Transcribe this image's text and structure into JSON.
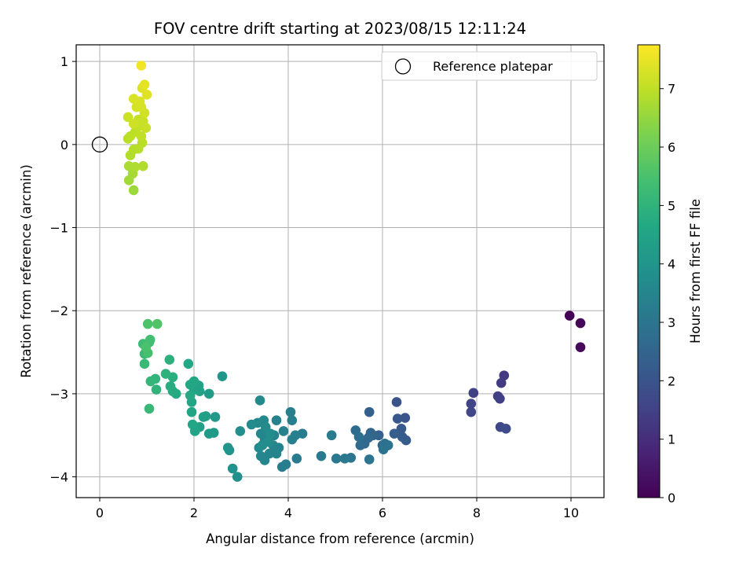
{
  "chart_data": {
    "type": "scatter",
    "title": "FOV centre drift starting at 2023/08/15 12:11:24",
    "xlabel": "Angular distance from reference (arcmin)",
    "ylabel": "Rotation from reference (arcmin)",
    "xlim": [
      -0.5,
      10.7
    ],
    "ylim": [
      -4.25,
      1.2
    ],
    "xticks": [
      0,
      2,
      4,
      6,
      8,
      10
    ],
    "yticks": [
      1,
      0,
      -1,
      -2,
      -3,
      -4
    ],
    "grid": true,
    "legend": {
      "placement": "top-right",
      "entries": [
        "Reference platepar"
      ]
    },
    "reference_point": {
      "name": "Reference platepar",
      "x": 0,
      "y": 0
    },
    "colorbar": {
      "label": "Hours from first FF file",
      "ticks": [
        0,
        1,
        2,
        3,
        4,
        5,
        6,
        7
      ],
      "range": [
        0,
        7.75
      ],
      "colormap": "viridis"
    },
    "series": [
      {
        "points": [
          [
            9.97,
            -2.06,
            0.05
          ],
          [
            10.2,
            -2.15,
            0.1
          ],
          [
            10.2,
            -2.44,
            0.15
          ],
          [
            8.58,
            -2.78,
            1.3
          ],
          [
            8.52,
            -2.87,
            1.35
          ],
          [
            7.93,
            -2.99,
            1.5
          ],
          [
            7.88,
            -3.12,
            1.55
          ],
          [
            7.88,
            -3.22,
            1.6
          ],
          [
            8.45,
            -3.03,
            1.4
          ],
          [
            8.49,
            -3.06,
            1.45
          ],
          [
            8.5,
            -3.4,
            1.7
          ],
          [
            8.62,
            -3.42,
            1.75
          ],
          [
            6.3,
            -3.1,
            2.0
          ],
          [
            6.48,
            -3.29,
            2.05
          ],
          [
            6.32,
            -3.3,
            2.1
          ],
          [
            6.4,
            -3.42,
            2.15
          ],
          [
            6.42,
            -3.52,
            2.2
          ],
          [
            6.5,
            -3.56,
            2.25
          ],
          [
            6.25,
            -3.48,
            2.3
          ],
          [
            5.72,
            -3.22,
            2.35
          ],
          [
            5.92,
            -3.5,
            2.4
          ],
          [
            6.0,
            -3.62,
            2.45
          ],
          [
            5.8,
            -3.5,
            2.5
          ],
          [
            5.75,
            -3.47,
            2.55
          ],
          [
            5.7,
            -3.53,
            2.6
          ],
          [
            5.62,
            -3.6,
            2.65
          ],
          [
            5.53,
            -3.62,
            2.7
          ],
          [
            5.43,
            -3.44,
            2.75
          ],
          [
            5.5,
            -3.52,
            2.8
          ],
          [
            6.05,
            -3.6,
            2.85
          ],
          [
            6.12,
            -3.62,
            2.9
          ],
          [
            6.02,
            -3.67,
            2.95
          ],
          [
            5.72,
            -3.79,
            3.0
          ],
          [
            5.33,
            -3.77,
            3.05
          ],
          [
            5.02,
            -3.78,
            3.1
          ],
          [
            5.2,
            -3.78,
            3.12
          ],
          [
            4.7,
            -3.75,
            3.15
          ],
          [
            4.92,
            -3.5,
            3.18
          ],
          [
            4.3,
            -3.48,
            3.2
          ],
          [
            4.18,
            -3.78,
            3.22
          ],
          [
            3.95,
            -3.85,
            3.25
          ],
          [
            3.87,
            -3.88,
            3.28
          ],
          [
            4.05,
            -3.22,
            3.3
          ],
          [
            4.08,
            -3.32,
            3.32
          ],
          [
            4.08,
            -3.55,
            3.34
          ],
          [
            4.15,
            -3.5,
            3.36
          ],
          [
            3.9,
            -3.45,
            3.38
          ],
          [
            3.75,
            -3.32,
            3.4
          ],
          [
            3.7,
            -3.5,
            3.42
          ],
          [
            3.8,
            -3.65,
            3.44
          ],
          [
            3.75,
            -3.72,
            3.46
          ],
          [
            3.68,
            -3.62,
            3.48
          ],
          [
            3.6,
            -3.72,
            3.5
          ],
          [
            3.5,
            -3.8,
            3.52
          ],
          [
            3.42,
            -3.75,
            3.54
          ],
          [
            3.5,
            -3.55,
            3.56
          ],
          [
            3.42,
            -3.48,
            3.58
          ],
          [
            3.48,
            -3.32,
            3.6
          ],
          [
            3.35,
            -3.35,
            3.62
          ],
          [
            3.4,
            -3.08,
            3.64
          ],
          [
            3.22,
            -3.37,
            3.66
          ],
          [
            3.38,
            -3.65,
            3.68
          ],
          [
            3.52,
            -3.4,
            3.7
          ],
          [
            3.62,
            -3.48,
            3.72
          ],
          [
            3.58,
            -3.58,
            3.74
          ],
          [
            3.45,
            -3.62,
            3.76
          ],
          [
            2.98,
            -3.45,
            3.8
          ],
          [
            2.92,
            -4.0,
            3.85
          ],
          [
            2.82,
            -3.9,
            3.9
          ],
          [
            2.75,
            -3.68,
            3.95
          ],
          [
            2.72,
            -3.65,
            4.0
          ],
          [
            2.6,
            -2.79,
            4.05
          ],
          [
            2.45,
            -3.28,
            4.1
          ],
          [
            2.42,
            -3.47,
            4.15
          ],
          [
            2.32,
            -3.48,
            4.2
          ],
          [
            2.32,
            -3.0,
            4.25
          ],
          [
            2.25,
            -3.27,
            4.3
          ],
          [
            2.2,
            -3.28,
            4.35
          ],
          [
            2.12,
            -3.4,
            4.38
          ],
          [
            2.08,
            -2.92,
            4.4
          ],
          [
            2.12,
            -2.97,
            4.42
          ],
          [
            2.1,
            -2.9,
            4.45
          ],
          [
            2.0,
            -2.95,
            4.48
          ],
          [
            2.02,
            -3.45,
            4.5
          ],
          [
            1.95,
            -3.1,
            4.52
          ],
          [
            1.95,
            -3.22,
            4.55
          ],
          [
            1.97,
            -3.37,
            4.58
          ],
          [
            2.0,
            -2.85,
            4.6
          ],
          [
            1.92,
            -2.89,
            4.62
          ],
          [
            1.88,
            -2.64,
            4.65
          ],
          [
            1.92,
            -3.02,
            4.68
          ],
          [
            1.62,
            -3.0,
            4.7
          ],
          [
            1.55,
            -2.97,
            4.75
          ],
          [
            1.5,
            -2.91,
            4.8
          ],
          [
            1.55,
            -2.8,
            4.85
          ],
          [
            1.48,
            -2.59,
            4.9
          ],
          [
            1.4,
            -2.76,
            4.95
          ],
          [
            1.2,
            -2.95,
            5.0
          ],
          [
            1.18,
            -2.82,
            5.05
          ],
          [
            1.08,
            -2.85,
            5.1
          ],
          [
            1.05,
            -3.18,
            5.15
          ],
          [
            0.95,
            -2.64,
            5.2
          ],
          [
            0.95,
            -2.52,
            5.25
          ],
          [
            0.92,
            -2.4,
            5.3
          ],
          [
            1.05,
            -2.38,
            5.35
          ],
          [
            1.07,
            -2.35,
            5.4
          ],
          [
            1.02,
            -2.51,
            5.45
          ],
          [
            0.98,
            -2.44,
            5.5
          ],
          [
            1.02,
            -2.16,
            5.55
          ],
          [
            1.22,
            -2.16,
            5.6
          ],
          [
            0.72,
            -0.55,
            6.6
          ],
          [
            0.62,
            -0.43,
            6.65
          ],
          [
            0.7,
            -0.35,
            6.7
          ],
          [
            0.62,
            -0.26,
            6.75
          ],
          [
            0.75,
            -0.27,
            6.8
          ],
          [
            0.92,
            -0.26,
            6.82
          ],
          [
            0.65,
            -0.13,
            6.85
          ],
          [
            0.72,
            -0.06,
            6.88
          ],
          [
            0.82,
            -0.05,
            6.9
          ],
          [
            0.9,
            0.02,
            6.92
          ],
          [
            0.6,
            0.07,
            6.94
          ],
          [
            0.65,
            0.1,
            6.96
          ],
          [
            0.75,
            0.15,
            6.98
          ],
          [
            0.78,
            0.22,
            7.0
          ],
          [
            0.88,
            0.1,
            7.02
          ],
          [
            0.85,
            0.22,
            7.05
          ],
          [
            0.82,
            0.3,
            7.08
          ],
          [
            0.92,
            0.28,
            7.1
          ],
          [
            0.98,
            0.2,
            7.12
          ],
          [
            0.6,
            0.33,
            7.15
          ],
          [
            0.72,
            0.25,
            7.18
          ],
          [
            0.95,
            0.38,
            7.2
          ],
          [
            0.78,
            0.45,
            7.25
          ],
          [
            0.88,
            0.45,
            7.28
          ],
          [
            0.72,
            0.55,
            7.3
          ],
          [
            0.85,
            0.52,
            7.32
          ],
          [
            0.9,
            0.68,
            7.35
          ],
          [
            1.0,
            0.6,
            7.4
          ],
          [
            0.95,
            0.72,
            7.45
          ],
          [
            0.88,
            0.95,
            7.6
          ]
        ]
      }
    ]
  }
}
